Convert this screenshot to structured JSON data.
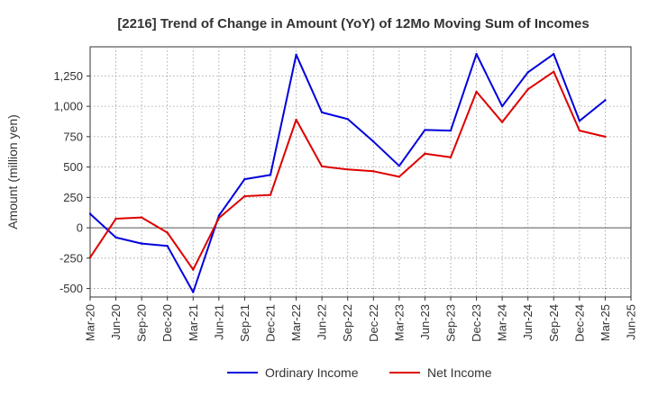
{
  "chart_data": {
    "type": "line",
    "title": "[2216]  Trend of Change in Amount (YoY) of 12Mo Moving Sum of Incomes",
    "xlabel": "",
    "ylabel": "Amount (million yen)",
    "categories": [
      "Mar-20",
      "Jun-20",
      "Sep-20",
      "Dec-20",
      "Mar-21",
      "Jun-21",
      "Sep-21",
      "Dec-21",
      "Mar-22",
      "Jun-22",
      "Sep-22",
      "Dec-22",
      "Mar-23",
      "Jun-23",
      "Sep-23",
      "Dec-23",
      "Mar-24",
      "Jun-24",
      "Sep-24",
      "Dec-24",
      "Mar-25",
      "Jun-25"
    ],
    "yticks": [
      -500,
      -250,
      0,
      250,
      500,
      750,
      1000,
      1250
    ],
    "ytick_labels": [
      "-500",
      "-250",
      "0",
      "250",
      "500",
      "750",
      "1,000",
      "1,250"
    ],
    "ylim": [
      -570,
      1490
    ],
    "grid": true,
    "legend_position": "bottom",
    "series": [
      {
        "name": "Ordinary Income",
        "color": "#0000dd",
        "values": [
          115,
          -80,
          -130,
          -150,
          -530,
          100,
          400,
          435,
          1425,
          950,
          895,
          710,
          510,
          805,
          800,
          1430,
          1000,
          1280,
          1430,
          880,
          1050,
          null
        ]
      },
      {
        "name": "Net Income",
        "color": "#dd0000",
        "values": [
          -245,
          75,
          85,
          -40,
          -345,
          80,
          260,
          270,
          890,
          505,
          480,
          465,
          420,
          610,
          580,
          1120,
          870,
          1140,
          1285,
          800,
          750,
          null
        ]
      }
    ]
  }
}
